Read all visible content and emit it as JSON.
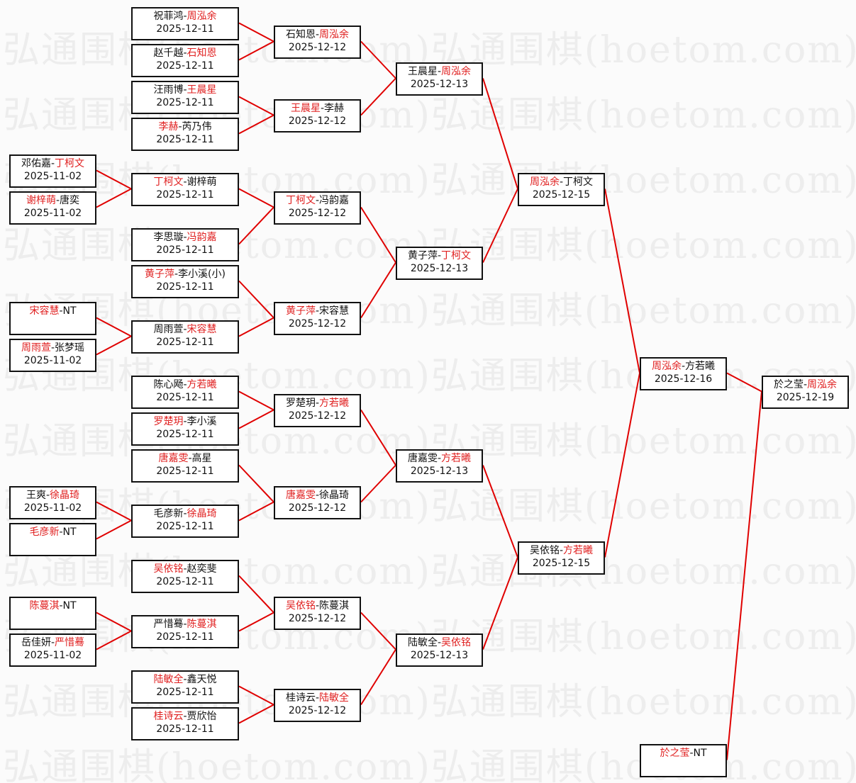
{
  "watermark": "弘通围棋(hoetom.com)",
  "colors": {
    "winner": "#e02020",
    "connector": "#e00000",
    "border": "#111111"
  },
  "matches": [
    {
      "id": "a1",
      "round": 0,
      "players": [
        "邓佑嘉",
        "丁柯文"
      ],
      "winner": 1,
      "date": "2025-11-02",
      "next": "b5"
    },
    {
      "id": "a2",
      "round": 0,
      "players": [
        "谢梓萌",
        "唐奕"
      ],
      "winner": 0,
      "date": "2025-11-02",
      "next": "b5"
    },
    {
      "id": "a3",
      "round": 0,
      "players": [
        "宋容慧",
        "NT"
      ],
      "winner": 0,
      "date": "",
      "next": "b8"
    },
    {
      "id": "a4",
      "round": 0,
      "players": [
        "周雨萱",
        "张梦瑶"
      ],
      "winner": 0,
      "date": "2025-11-02",
      "next": "b8"
    },
    {
      "id": "a5",
      "round": 0,
      "players": [
        "王爽",
        "徐晶琦"
      ],
      "winner": 1,
      "date": "2025-11-02",
      "next": "b12"
    },
    {
      "id": "a6",
      "round": 0,
      "players": [
        "毛彦新",
        "NT"
      ],
      "winner": 0,
      "date": "",
      "next": "b12"
    },
    {
      "id": "a7",
      "round": 0,
      "players": [
        "陈蔓淇",
        "NT"
      ],
      "winner": 0,
      "date": "",
      "next": "b14"
    },
    {
      "id": "a8",
      "round": 0,
      "players": [
        "岳佳妍",
        "严惜蓦"
      ],
      "winner": 1,
      "date": "2025-11-02",
      "next": "b14"
    },
    {
      "id": "b1",
      "round": 1,
      "players": [
        "祝菲鸿",
        "周泓余"
      ],
      "winner": 1,
      "date": "2025-12-11",
      "next": "c1"
    },
    {
      "id": "b2",
      "round": 1,
      "players": [
        "赵千越",
        "石知恩"
      ],
      "winner": 1,
      "date": "2025-12-11",
      "next": "c1"
    },
    {
      "id": "b3",
      "round": 1,
      "players": [
        "汪雨博",
        "王晨星"
      ],
      "winner": 1,
      "date": "2025-12-11",
      "next": "c2"
    },
    {
      "id": "b4",
      "round": 1,
      "players": [
        "李赫",
        "芮乃伟"
      ],
      "winner": 0,
      "date": "2025-12-11",
      "next": "c2"
    },
    {
      "id": "b5",
      "round": 1,
      "players": [
        "丁柯文",
        "谢梓萌"
      ],
      "winner": 0,
      "date": "2025-12-11",
      "next": "c3"
    },
    {
      "id": "b6",
      "round": 1,
      "players": [
        "李思璇",
        "冯韵嘉"
      ],
      "winner": 1,
      "date": "2025-12-11",
      "next": "c3"
    },
    {
      "id": "b7",
      "round": 1,
      "players": [
        "黄子萍",
        "李小溪(小)"
      ],
      "winner": 0,
      "date": "2025-12-11",
      "next": "c4"
    },
    {
      "id": "b8",
      "round": 1,
      "players": [
        "周雨萱",
        "宋容慧"
      ],
      "winner": 1,
      "date": "2025-12-11",
      "next": "c4"
    },
    {
      "id": "b9",
      "round": 1,
      "players": [
        "陈心飏",
        "方若曦"
      ],
      "winner": 1,
      "date": "2025-12-11",
      "next": "c5"
    },
    {
      "id": "b10",
      "round": 1,
      "players": [
        "罗楚玥",
        "李小溪"
      ],
      "winner": 0,
      "date": "2025-12-11",
      "next": "c5"
    },
    {
      "id": "b11",
      "round": 1,
      "players": [
        "唐嘉雯",
        "高星"
      ],
      "winner": 0,
      "date": "2025-12-11",
      "next": "c6"
    },
    {
      "id": "b12",
      "round": 1,
      "players": [
        "毛彦新",
        "徐晶琦"
      ],
      "winner": 1,
      "date": "2025-12-11",
      "next": "c6"
    },
    {
      "id": "b13",
      "round": 1,
      "players": [
        "吴依铭",
        "赵奕斐"
      ],
      "winner": 0,
      "date": "2025-12-11",
      "next": "c7"
    },
    {
      "id": "b14",
      "round": 1,
      "players": [
        "严惜蓦",
        "陈蔓淇"
      ],
      "winner": 1,
      "date": "2025-12-11",
      "next": "c7"
    },
    {
      "id": "b15",
      "round": 1,
      "players": [
        "陆敏全",
        "鑫天悦"
      ],
      "winner": 0,
      "date": "2025-12-11",
      "next": "c8"
    },
    {
      "id": "b16",
      "round": 1,
      "players": [
        "桂诗云",
        "贾欣怡"
      ],
      "winner": 0,
      "date": "2025-12-11",
      "next": "c8"
    },
    {
      "id": "c1",
      "round": 2,
      "players": [
        "石知恩",
        "周泓余"
      ],
      "winner": 1,
      "date": "2025-12-12",
      "next": "d1"
    },
    {
      "id": "c2",
      "round": 2,
      "players": [
        "王晨星",
        "李赫"
      ],
      "winner": 0,
      "date": "2025-12-12",
      "next": "d1"
    },
    {
      "id": "c3",
      "round": 2,
      "players": [
        "丁柯文",
        "冯韵嘉"
      ],
      "winner": 0,
      "date": "2025-12-12",
      "next": "d2"
    },
    {
      "id": "c4",
      "round": 2,
      "players": [
        "黄子萍",
        "宋容慧"
      ],
      "winner": 0,
      "date": "2025-12-12",
      "next": "d2"
    },
    {
      "id": "c5",
      "round": 2,
      "players": [
        "罗楚玥",
        "方若曦"
      ],
      "winner": 1,
      "date": "2025-12-12",
      "next": "d3"
    },
    {
      "id": "c6",
      "round": 2,
      "players": [
        "唐嘉雯",
        "徐晶琦"
      ],
      "winner": 0,
      "date": "2025-12-12",
      "next": "d3"
    },
    {
      "id": "c7",
      "round": 2,
      "players": [
        "吴依铭",
        "陈蔓淇"
      ],
      "winner": 0,
      "date": "2025-12-12",
      "next": "d4"
    },
    {
      "id": "c8",
      "round": 2,
      "players": [
        "桂诗云",
        "陆敏全"
      ],
      "winner": 1,
      "date": "2025-12-12",
      "next": "d4"
    },
    {
      "id": "d1",
      "round": 3,
      "players": [
        "王晨星",
        "周泓余"
      ],
      "winner": 1,
      "date": "2025-12-13",
      "next": "e1"
    },
    {
      "id": "d2",
      "round": 3,
      "players": [
        "黄子萍",
        "丁柯文"
      ],
      "winner": 1,
      "date": "2025-12-13",
      "next": "e1"
    },
    {
      "id": "d3",
      "round": 3,
      "players": [
        "唐嘉雯",
        "方若曦"
      ],
      "winner": 1,
      "date": "2025-12-13",
      "next": "e2"
    },
    {
      "id": "d4",
      "round": 3,
      "players": [
        "陆敏全",
        "吴依铭"
      ],
      "winner": 1,
      "date": "2025-12-13",
      "next": "e2"
    },
    {
      "id": "e1",
      "round": 4,
      "players": [
        "周泓余",
        "丁柯文"
      ],
      "winner": 0,
      "date": "2025-12-15",
      "next": "f1"
    },
    {
      "id": "e2",
      "round": 4,
      "players": [
        "吴依铭",
        "方若曦"
      ],
      "winner": 1,
      "date": "2025-12-15",
      "next": "f1"
    },
    {
      "id": "f1",
      "round": 5,
      "players": [
        "周泓余",
        "方若曦"
      ],
      "winner": 0,
      "date": "2025-12-16",
      "next": "g1"
    },
    {
      "id": "f2",
      "round": 5,
      "players": [
        "於之莹",
        "NT"
      ],
      "winner": 0,
      "date": "",
      "next": "g1"
    },
    {
      "id": "g1",
      "round": 6,
      "players": [
        "於之莹",
        "周泓余"
      ],
      "winner": 1,
      "date": "2025-12-19",
      "next": ""
    }
  ]
}
